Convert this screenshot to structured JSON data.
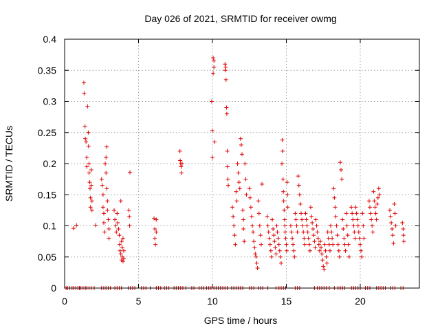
{
  "chart_data": {
    "type": "scatter",
    "title": "Day 026 of 2021, SRMTID for receiver owmg",
    "xlabel": "GPS time / hours",
    "ylabel": "SRMTID / TECUs",
    "xlim": [
      0,
      24
    ],
    "ylim": [
      0,
      0.4
    ],
    "xticks": [
      0,
      5,
      10,
      15,
      20
    ],
    "yticks": [
      0,
      0.05,
      0.1,
      0.15,
      0.2,
      0.25,
      0.3,
      0.35,
      0.4
    ],
    "ytick_labels": [
      "0",
      "0.05",
      "0.1",
      "0.15",
      "0.2",
      "0.25",
      "0.3",
      "0.35",
      "0.4"
    ],
    "grid": true,
    "marker": "plus",
    "series_color": "#dd0000",
    "zero_x": [
      0.1,
      0.2,
      0.35,
      0.5,
      0.6,
      0.75,
      0.9,
      1.0,
      1.1,
      1.25,
      1.4,
      1.5,
      1.65,
      1.8,
      2.0,
      2.5,
      2.65,
      2.8,
      2.95,
      3.1,
      3.4,
      3.55,
      3.7,
      3.85,
      4.3,
      4.45,
      4.6,
      4.75,
      5.2,
      5.35,
      5.5,
      5.8,
      6.2,
      6.35,
      6.5,
      6.75,
      6.9,
      7.05,
      7.4,
      7.55,
      7.7,
      7.85,
      8.0,
      8.2,
      8.6,
      8.75,
      9.1,
      9.25,
      9.4,
      9.6,
      9.75,
      9.9,
      10.1,
      10.25,
      10.4,
      10.55,
      10.7,
      10.85,
      11.0,
      11.3,
      11.45,
      11.6,
      11.75,
      11.9,
      12.05,
      12.5,
      12.65,
      12.8,
      13.1,
      13.25,
      13.4,
      13.75,
      14.3,
      14.5,
      14.65,
      14.8,
      14.95,
      15.6,
      15.75,
      15.9,
      16.9,
      17.1,
      17.25,
      17.4,
      17.55,
      17.7,
      17.9,
      18.25,
      18.5,
      18.65,
      18.8,
      18.95,
      19.4,
      19.55,
      19.7,
      19.85,
      20.0,
      20.35,
      20.5,
      20.65,
      21.1,
      21.25,
      21.4,
      21.55,
      21.7,
      22.05,
      22.2,
      22.35,
      22.75,
      22.9
    ],
    "points": [
      [
        0.6,
        0.096
      ],
      [
        0.8,
        0.101
      ],
      [
        1.3,
        0.33
      ],
      [
        1.32,
        0.313
      ],
      [
        1.38,
        0.26
      ],
      [
        1.4,
        0.24
      ],
      [
        1.45,
        0.235
      ],
      [
        1.5,
        0.21
      ],
      [
        1.5,
        0.195
      ],
      [
        1.55,
        0.292
      ],
      [
        1.6,
        0.25
      ],
      [
        1.62,
        0.228
      ],
      [
        1.65,
        0.2
      ],
      [
        1.65,
        0.185
      ],
      [
        1.7,
        0.17
      ],
      [
        1.72,
        0.16
      ],
      [
        1.75,
        0.145
      ],
      [
        1.75,
        0.13
      ],
      [
        1.8,
        0.19
      ],
      [
        1.8,
        0.165
      ],
      [
        1.85,
        0.14
      ],
      [
        1.85,
        0.125
      ],
      [
        2.1,
        0.101
      ],
      [
        2.5,
        0.175
      ],
      [
        2.55,
        0.165
      ],
      [
        2.6,
        0.15
      ],
      [
        2.6,
        0.13
      ],
      [
        2.65,
        0.12
      ],
      [
        2.65,
        0.105
      ],
      [
        2.7,
        0.09
      ],
      [
        2.75,
        0.2
      ],
      [
        2.8,
        0.21
      ],
      [
        2.8,
        0.185
      ],
      [
        2.85,
        0.227
      ],
      [
        2.85,
        0.16
      ],
      [
        2.9,
        0.14
      ],
      [
        2.9,
        0.125
      ],
      [
        2.95,
        0.11
      ],
      [
        3.0,
        0.095
      ],
      [
        3.0,
        0.08
      ],
      [
        3.35,
        0.125
      ],
      [
        3.4,
        0.11
      ],
      [
        3.45,
        0.1
      ],
      [
        3.5,
        0.09
      ],
      [
        3.55,
        0.12
      ],
      [
        3.6,
        0.105
      ],
      [
        3.65,
        0.095
      ],
      [
        3.7,
        0.085
      ],
      [
        3.72,
        0.07
      ],
      [
        3.75,
        0.06
      ],
      [
        3.8,
        0.14
      ],
      [
        3.8,
        0.055
      ],
      [
        3.85,
        0.075
      ],
      [
        3.85,
        0.045
      ],
      [
        3.9,
        0.065
      ],
      [
        3.9,
        0.05
      ],
      [
        3.95,
        0.08
      ],
      [
        3.95,
        0.043
      ],
      [
        4.0,
        0.06
      ],
      [
        4.0,
        0.048
      ],
      [
        4.35,
        0.125
      ],
      [
        4.38,
        0.115
      ],
      [
        4.4,
        0.1
      ],
      [
        4.42,
        0.186
      ],
      [
        6.05,
        0.112
      ],
      [
        6.1,
        0.095
      ],
      [
        6.1,
        0.08
      ],
      [
        6.15,
        0.07
      ],
      [
        6.2,
        0.11
      ],
      [
        6.2,
        0.09
      ],
      [
        7.8,
        0.22
      ],
      [
        7.82,
        0.205
      ],
      [
        7.85,
        0.2
      ],
      [
        7.88,
        0.195
      ],
      [
        7.9,
        0.185
      ],
      [
        7.95,
        0.2
      ],
      [
        9.95,
        0.3
      ],
      [
        10.0,
        0.253
      ],
      [
        10.0,
        0.21
      ],
      [
        10.05,
        0.345
      ],
      [
        10.05,
        0.37
      ],
      [
        10.1,
        0.355
      ],
      [
        10.1,
        0.365
      ],
      [
        10.15,
        0.235
      ],
      [
        10.85,
        0.36
      ],
      [
        10.87,
        0.35
      ],
      [
        10.9,
        0.355
      ],
      [
        10.92,
        0.335
      ],
      [
        10.95,
        0.29
      ],
      [
        10.97,
        0.28
      ],
      [
        11.0,
        0.22
      ],
      [
        11.02,
        0.195
      ],
      [
        11.05,
        0.175
      ],
      [
        11.07,
        0.165
      ],
      [
        11.35,
        0.13
      ],
      [
        11.4,
        0.115
      ],
      [
        11.45,
        0.1
      ],
      [
        11.5,
        0.085
      ],
      [
        11.55,
        0.07
      ],
      [
        11.6,
        0.155
      ],
      [
        11.65,
        0.14
      ],
      [
        11.7,
        0.2
      ],
      [
        11.75,
        0.185
      ],
      [
        11.8,
        0.17
      ],
      [
        11.85,
        0.16
      ],
      [
        11.9,
        0.24
      ],
      [
        11.95,
        0.23
      ],
      [
        12.0,
        0.215
      ],
      [
        12.05,
        0.125
      ],
      [
        12.1,
        0.11
      ],
      [
        12.1,
        0.095
      ],
      [
        12.15,
        0.075
      ],
      [
        12.2,
        0.2
      ],
      [
        12.25,
        0.175
      ],
      [
        12.3,
        0.15
      ],
      [
        12.5,
        0.16
      ],
      [
        12.55,
        0.145
      ],
      [
        12.6,
        0.13
      ],
      [
        12.65,
        0.115
      ],
      [
        12.7,
        0.1
      ],
      [
        12.75,
        0.09
      ],
      [
        12.8,
        0.075
      ],
      [
        12.85,
        0.065
      ],
      [
        12.9,
        0.055
      ],
      [
        12.95,
        0.05
      ],
      [
        13.0,
        0.04
      ],
      [
        13.05,
        0.032
      ],
      [
        13.1,
        0.14
      ],
      [
        13.15,
        0.12
      ],
      [
        13.2,
        0.1
      ],
      [
        13.25,
        0.085
      ],
      [
        13.3,
        0.07
      ],
      [
        13.35,
        0.167
      ],
      [
        13.7,
        0.115
      ],
      [
        13.75,
        0.1
      ],
      [
        13.8,
        0.09
      ],
      [
        13.85,
        0.08
      ],
      [
        13.9,
        0.07
      ],
      [
        13.95,
        0.06
      ],
      [
        14.0,
        0.05
      ],
      [
        14.05,
        0.11
      ],
      [
        14.1,
        0.095
      ],
      [
        14.15,
        0.085
      ],
      [
        14.2,
        0.075
      ],
      [
        14.25,
        0.065
      ],
      [
        14.3,
        0.055
      ],
      [
        14.35,
        0.1
      ],
      [
        14.4,
        0.09
      ],
      [
        14.45,
        0.08
      ],
      [
        14.5,
        0.07
      ],
      [
        14.55,
        0.06
      ],
      [
        14.6,
        0.05
      ],
      [
        14.65,
        0.04
      ],
      [
        14.7,
        0.2
      ],
      [
        14.72,
        0.238
      ],
      [
        14.75,
        0.22
      ],
      [
        14.78,
        0.175
      ],
      [
        14.8,
        0.155
      ],
      [
        14.82,
        0.14
      ],
      [
        14.85,
        0.125
      ],
      [
        14.88,
        0.11
      ],
      [
        14.9,
        0.1
      ],
      [
        14.92,
        0.09
      ],
      [
        14.95,
        0.08
      ],
      [
        15.0,
        0.07
      ],
      [
        15.02,
        0.06
      ],
      [
        15.05,
        0.17
      ],
      [
        15.08,
        0.15
      ],
      [
        15.1,
        0.13
      ],
      [
        15.3,
        0.1
      ],
      [
        15.35,
        0.09
      ],
      [
        15.4,
        0.08
      ],
      [
        15.45,
        0.07
      ],
      [
        15.5,
        0.06
      ],
      [
        15.55,
        0.05
      ],
      [
        15.6,
        0.12
      ],
      [
        15.65,
        0.11
      ],
      [
        15.7,
        0.1
      ],
      [
        15.75,
        0.09
      ],
      [
        15.8,
        0.18
      ],
      [
        15.85,
        0.165
      ],
      [
        15.9,
        0.15
      ],
      [
        15.95,
        0.135
      ],
      [
        16.0,
        0.12
      ],
      [
        16.05,
        0.11
      ],
      [
        16.1,
        0.1
      ],
      [
        16.15,
        0.09
      ],
      [
        16.2,
        0.08
      ],
      [
        16.25,
        0.07
      ],
      [
        16.3,
        0.12
      ],
      [
        16.35,
        0.11
      ],
      [
        16.4,
        0.1
      ],
      [
        16.45,
        0.09
      ],
      [
        16.5,
        0.08
      ],
      [
        16.55,
        0.07
      ],
      [
        16.6,
        0.06
      ],
      [
        16.65,
        0.13
      ],
      [
        16.7,
        0.115
      ],
      [
        16.75,
        0.105
      ],
      [
        16.8,
        0.095
      ],
      [
        16.85,
        0.085
      ],
      [
        16.9,
        0.075
      ],
      [
        16.95,
        0.065
      ],
      [
        17.0,
        0.11
      ],
      [
        17.05,
        0.1
      ],
      [
        17.1,
        0.09
      ],
      [
        17.15,
        0.08
      ],
      [
        17.2,
        0.07
      ],
      [
        17.25,
        0.06
      ],
      [
        17.3,
        0.075
      ],
      [
        17.35,
        0.065
      ],
      [
        17.4,
        0.055
      ],
      [
        17.45,
        0.045
      ],
      [
        17.5,
        0.035
      ],
      [
        17.55,
        0.03
      ],
      [
        17.6,
        0.07
      ],
      [
        17.65,
        0.06
      ],
      [
        17.7,
        0.05
      ],
      [
        17.75,
        0.04
      ],
      [
        17.8,
        0.09
      ],
      [
        17.85,
        0.08
      ],
      [
        17.9,
        0.07
      ],
      [
        17.95,
        0.06
      ],
      [
        18.0,
        0.1
      ],
      [
        18.05,
        0.09
      ],
      [
        18.1,
        0.08
      ],
      [
        18.15,
        0.07
      ],
      [
        18.2,
        0.16
      ],
      [
        18.25,
        0.145
      ],
      [
        18.3,
        0.13
      ],
      [
        18.35,
        0.115
      ],
      [
        18.4,
        0.1
      ],
      [
        18.45,
        0.085
      ],
      [
        18.5,
        0.07
      ],
      [
        18.55,
        0.06
      ],
      [
        18.6,
        0.05
      ],
      [
        18.65,
        0.202
      ],
      [
        18.7,
        0.19
      ],
      [
        18.75,
        0.175
      ],
      [
        18.8,
        0.11
      ],
      [
        18.85,
        0.095
      ],
      [
        18.9,
        0.08
      ],
      [
        18.95,
        0.07
      ],
      [
        19.0,
        0.06
      ],
      [
        19.05,
        0.12
      ],
      [
        19.1,
        0.1
      ],
      [
        19.15,
        0.085
      ],
      [
        19.2,
        0.07
      ],
      [
        19.25,
        0.05
      ],
      [
        19.4,
        0.13
      ],
      [
        19.45,
        0.12
      ],
      [
        19.5,
        0.11
      ],
      [
        19.55,
        0.1
      ],
      [
        19.6,
        0.09
      ],
      [
        19.65,
        0.08
      ],
      [
        19.7,
        0.13
      ],
      [
        19.75,
        0.12
      ],
      [
        19.8,
        0.11
      ],
      [
        19.85,
        0.1
      ],
      [
        19.9,
        0.09
      ],
      [
        19.95,
        0.08
      ],
      [
        20.0,
        0.07
      ],
      [
        20.05,
        0.06
      ],
      [
        20.1,
        0.05
      ],
      [
        20.15,
        0.12
      ],
      [
        20.2,
        0.1
      ],
      [
        20.25,
        0.08
      ],
      [
        20.6,
        0.14
      ],
      [
        20.65,
        0.13
      ],
      [
        20.7,
        0.12
      ],
      [
        20.75,
        0.11
      ],
      [
        20.8,
        0.1
      ],
      [
        20.85,
        0.09
      ],
      [
        20.9,
        0.155
      ],
      [
        20.95,
        0.14
      ],
      [
        21.0,
        0.13
      ],
      [
        21.05,
        0.12
      ],
      [
        21.1,
        0.11
      ],
      [
        21.15,
        0.135
      ],
      [
        21.2,
        0.145
      ],
      [
        21.25,
        0.16
      ],
      [
        21.3,
        0.15
      ],
      [
        22.0,
        0.125
      ],
      [
        22.05,
        0.115
      ],
      [
        22.1,
        0.105
      ],
      [
        22.15,
        0.095
      ],
      [
        22.2,
        0.085
      ],
      [
        22.25,
        0.072
      ],
      [
        22.3,
        0.135
      ],
      [
        22.35,
        0.12
      ],
      [
        22.4,
        0.1
      ],
      [
        22.85,
        0.105
      ],
      [
        22.9,
        0.095
      ],
      [
        22.92,
        0.085
      ],
      [
        22.95,
        0.075
      ]
    ]
  }
}
